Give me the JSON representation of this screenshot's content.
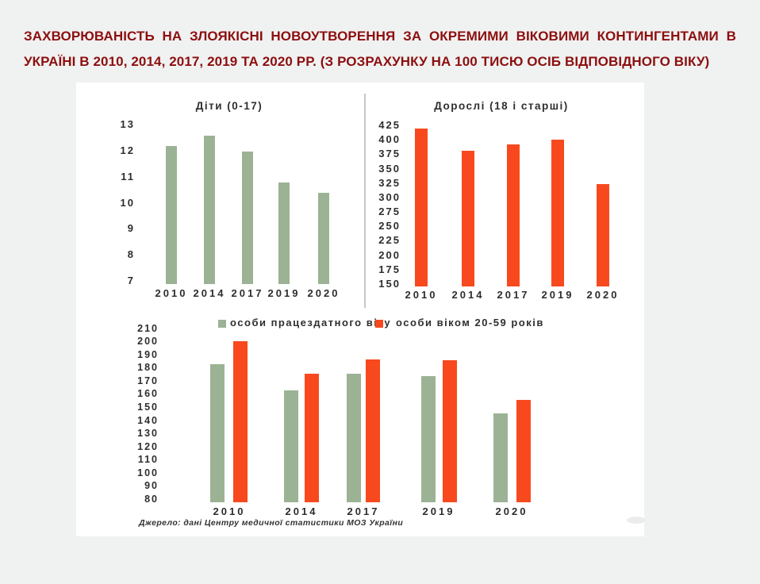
{
  "page": {
    "background_color": "#f0f1f1",
    "panel_color": "#ffffff",
    "accent_green": "#9bb394",
    "accent_red": "#f8491e",
    "title_color": "#8c0f0f"
  },
  "title": {
    "line1": "ЗАХВОРЮВАНІСТЬ НА ЗЛОЯКІСНІ НОВОУТВОРЕННЯ ЗА ОКРЕМИМИ ВІКОВИМИ КОНТИНГЕНТАМИ В",
    "line2": "УКРАЇНІ В 2010, 2014, 2017, 2019 ТА 2020 РР. (З РОЗРАХУНКУ НА 100 ТИСЮ ОСІБ ВІДПОВІДНОГО ВІКУ)"
  },
  "source_note": "Джерело: дані Центру медичної статистики МОЗ України",
  "chart_data": [
    {
      "type": "bar",
      "title": "Діти (0-17)",
      "categories": [
        "2010",
        "2014",
        "2017",
        "2019",
        "2020"
      ],
      "values": [
        12.3,
        12.7,
        12.1,
        10.9,
        10.5
      ],
      "bar_color": "#9bb394",
      "ylim": [
        7,
        13
      ],
      "ytick_step": 1,
      "grid": false,
      "legend_position": "none"
    },
    {
      "type": "bar",
      "title": "Дорослі (18 і старші)",
      "categories": [
        "2010",
        "2014",
        "2017",
        "2019",
        "2020"
      ],
      "values": [
        423,
        385,
        396,
        404,
        327
      ],
      "bar_color": "#f8491e",
      "ylim": [
        150,
        425
      ],
      "ytick_step": 25,
      "grid": false,
      "legend_position": "none"
    },
    {
      "type": "bar",
      "categories": [
        "2010",
        "2014",
        "2017",
        "2019",
        "2020"
      ],
      "series": [
        {
          "name": "особи працездатного віку",
          "color": "#9bb394",
          "values": [
            185,
            165,
            178,
            176,
            148
          ]
        },
        {
          "name": "особи віком 20-59 років",
          "color": "#f8491e",
          "values": [
            203,
            178,
            189,
            188,
            158
          ]
        }
      ],
      "ylim": [
        80,
        210
      ],
      "ytick_step": 10,
      "grid": false,
      "legend_position": "top"
    }
  ]
}
